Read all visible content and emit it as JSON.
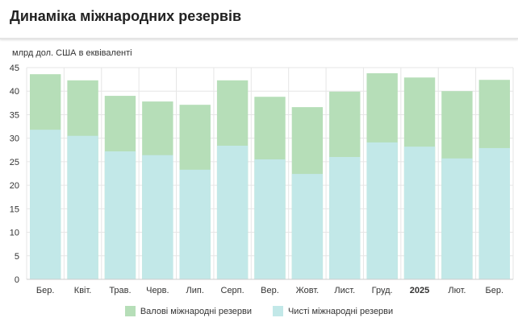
{
  "title": "Динаміка міжнародних резервів",
  "chart_data": {
    "type": "bar",
    "title": "Динаміка міжнародних резервів",
    "ylabel": "млрд дол. США в еквіваленті",
    "ylim": [
      0,
      45
    ],
    "yticks": [
      0,
      5,
      10,
      15,
      20,
      25,
      30,
      35,
      40,
      45
    ],
    "categories": [
      "Бер.",
      "Квіт.",
      "Трав.",
      "Черв.",
      "Лип.",
      "Серп.",
      "Вер.",
      "Жовт.",
      "Лист.",
      "Груд.",
      "2025",
      "Лют.",
      "Бер."
    ],
    "bold_categories": [
      "2025"
    ],
    "series": [
      {
        "name": "Валові міжнародні резерви",
        "color": "#b6deb8",
        "values": [
          43.6,
          42.3,
          39.0,
          37.8,
          37.1,
          42.3,
          38.8,
          36.6,
          39.9,
          43.8,
          42.9,
          40.0,
          42.4
        ]
      },
      {
        "name": "Чисті міжнародні резерви",
        "color": "#c2e8e8",
        "values": [
          31.8,
          30.5,
          27.2,
          26.4,
          23.3,
          28.4,
          25.5,
          22.4,
          26.0,
          29.1,
          28.2,
          25.7,
          27.9
        ]
      }
    ],
    "grid": true,
    "legend": "bottom"
  }
}
